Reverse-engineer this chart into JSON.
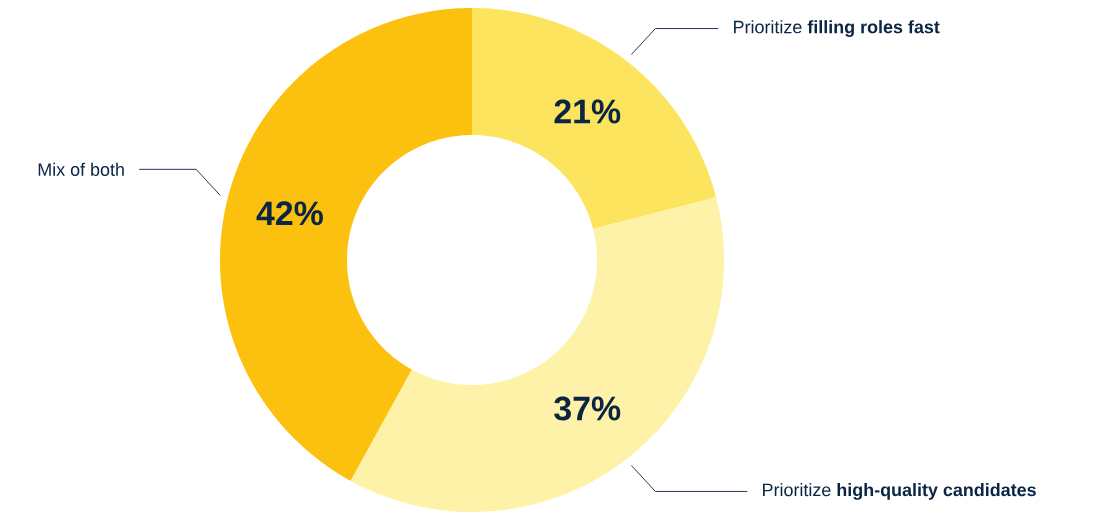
{
  "chart_data": {
    "type": "donut",
    "categories": [
      "Prioritize **filling roles fast**",
      "Prioritize **high-quality candidates**",
      "Mix of both"
    ],
    "values": [
      21,
      37,
      42
    ],
    "colors": [
      "#fde45e",
      "#fef2a8",
      "#fcc10f"
    ],
    "value_labels": [
      "21%",
      "37%",
      "42%"
    ]
  }
}
